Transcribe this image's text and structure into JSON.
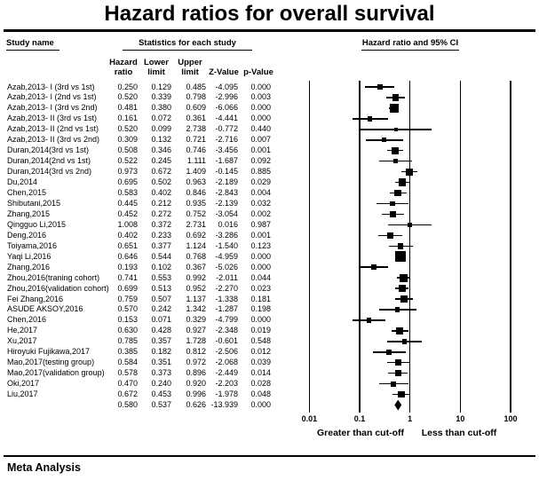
{
  "title": "Hazard ratios for overall survival",
  "footer": "Meta Analysis",
  "header": {
    "study": "Study name",
    "stats": "Statistics for each study",
    "plot": "Hazard ratio and 95% CI"
  },
  "columns": [
    "Hazard\nratio",
    "Lower\nlimit",
    "Upper\nlimit",
    "Z-Value",
    "p-Value"
  ],
  "chart_data": {
    "type": "forest",
    "title": "Hazard ratios for overall survival",
    "effect_measure": "Hazard ratio",
    "x_axis": {
      "scale": "log",
      "ticks": [
        0.01,
        0.1,
        1,
        10,
        100
      ],
      "tick_labels": [
        "0.01",
        "0.1",
        "1",
        "10",
        "100"
      ],
      "range": [
        0.01,
        100
      ]
    },
    "axis_caption_left": "Greater than cut-off",
    "axis_caption_right": "Less than cut-off",
    "studies": [
      {
        "name": "Azab,2013- I (3rd vs 1st)",
        "hazard_ratio": 0.25,
        "lower_limit": 0.129,
        "upper_limit": 0.485,
        "z_value": -4.095,
        "p_value": 0.0
      },
      {
        "name": "Azab,2013- I (2nd vs 1st)",
        "hazard_ratio": 0.52,
        "lower_limit": 0.339,
        "upper_limit": 0.798,
        "z_value": -2.996,
        "p_value": 0.003
      },
      {
        "name": "Azab,2013- I (3rd vs 2nd)",
        "hazard_ratio": 0.481,
        "lower_limit": 0.38,
        "upper_limit": 0.609,
        "z_value": -6.066,
        "p_value": 0.0
      },
      {
        "name": "Azab,2013- II (3rd vs 1st)",
        "hazard_ratio": 0.161,
        "lower_limit": 0.072,
        "upper_limit": 0.361,
        "z_value": -4.441,
        "p_value": 0.0
      },
      {
        "name": "Azab,2013- II (2nd vs 1st)",
        "hazard_ratio": 0.52,
        "lower_limit": 0.099,
        "upper_limit": 2.738,
        "z_value": -0.772,
        "p_value": 0.44
      },
      {
        "name": "Azab,2013- II (3rd vs 2nd)",
        "hazard_ratio": 0.309,
        "lower_limit": 0.132,
        "upper_limit": 0.721,
        "z_value": -2.716,
        "p_value": 0.007
      },
      {
        "name": "Duran,2014(3rd vs 1st)",
        "hazard_ratio": 0.508,
        "lower_limit": 0.346,
        "upper_limit": 0.746,
        "z_value": -3.456,
        "p_value": 0.001
      },
      {
        "name": "Duran,2014(2nd vs 1st)",
        "hazard_ratio": 0.522,
        "lower_limit": 0.245,
        "upper_limit": 1.111,
        "z_value": -1.687,
        "p_value": 0.092
      },
      {
        "name": "Duran,2014(3rd vs 2nd)",
        "hazard_ratio": 0.973,
        "lower_limit": 0.672,
        "upper_limit": 1.409,
        "z_value": -0.145,
        "p_value": 0.885
      },
      {
        "name": "Du,2014",
        "hazard_ratio": 0.695,
        "lower_limit": 0.502,
        "upper_limit": 0.963,
        "z_value": -2.189,
        "p_value": 0.029
      },
      {
        "name": "Chen,2015",
        "hazard_ratio": 0.583,
        "lower_limit": 0.402,
        "upper_limit": 0.846,
        "z_value": -2.843,
        "p_value": 0.004
      },
      {
        "name": "Shibutani,2015",
        "hazard_ratio": 0.445,
        "lower_limit": 0.212,
        "upper_limit": 0.935,
        "z_value": -2.139,
        "p_value": 0.032
      },
      {
        "name": "Zhang,2015",
        "hazard_ratio": 0.452,
        "lower_limit": 0.272,
        "upper_limit": 0.752,
        "z_value": -3.054,
        "p_value": 0.002
      },
      {
        "name": "Qingguo Li,2015",
        "hazard_ratio": 1.008,
        "lower_limit": 0.372,
        "upper_limit": 2.731,
        "z_value": 0.016,
        "p_value": 0.987
      },
      {
        "name": "Deng,2016",
        "hazard_ratio": 0.402,
        "lower_limit": 0.233,
        "upper_limit": 0.692,
        "z_value": -3.286,
        "p_value": 0.001
      },
      {
        "name": "Toiyama,2016",
        "hazard_ratio": 0.651,
        "lower_limit": 0.377,
        "upper_limit": 1.124,
        "z_value": -1.54,
        "p_value": 0.123
      },
      {
        "name": "Yaqi Li,2016",
        "hazard_ratio": 0.646,
        "lower_limit": 0.544,
        "upper_limit": 0.768,
        "z_value": -4.959,
        "p_value": 0.0
      },
      {
        "name": "Zhang,2016",
        "hazard_ratio": 0.193,
        "lower_limit": 0.102,
        "upper_limit": 0.367,
        "z_value": -5.026,
        "p_value": 0.0
      },
      {
        "name": "Zhou,2016(traning cohort)",
        "hazard_ratio": 0.741,
        "lower_limit": 0.553,
        "upper_limit": 0.992,
        "z_value": -2.011,
        "p_value": 0.044
      },
      {
        "name": "Zhou,2016(validation cohort)",
        "hazard_ratio": 0.699,
        "lower_limit": 0.513,
        "upper_limit": 0.952,
        "z_value": -2.27,
        "p_value": 0.023
      },
      {
        "name": "Fei Zhang,2016",
        "hazard_ratio": 0.759,
        "lower_limit": 0.507,
        "upper_limit": 1.137,
        "z_value": -1.338,
        "p_value": 0.181
      },
      {
        "name": "ASUDE AKSOY,2016",
        "hazard_ratio": 0.57,
        "lower_limit": 0.242,
        "upper_limit": 1.342,
        "z_value": -1.287,
        "p_value": 0.198
      },
      {
        "name": "Chen,2016",
        "hazard_ratio": 0.153,
        "lower_limit": 0.071,
        "upper_limit": 0.329,
        "z_value": -4.799,
        "p_value": 0.0
      },
      {
        "name": "He,2017",
        "hazard_ratio": 0.63,
        "lower_limit": 0.428,
        "upper_limit": 0.927,
        "z_value": -2.348,
        "p_value": 0.019
      },
      {
        "name": "Xu,2017",
        "hazard_ratio": 0.785,
        "lower_limit": 0.357,
        "upper_limit": 1.728,
        "z_value": -0.601,
        "p_value": 0.548
      },
      {
        "name": "Hiroyuki Fujikawa,2017",
        "hazard_ratio": 0.385,
        "lower_limit": 0.182,
        "upper_limit": 0.812,
        "z_value": -2.506,
        "p_value": 0.012
      },
      {
        "name": "Mao,2017(testing group)",
        "hazard_ratio": 0.584,
        "lower_limit": 0.351,
        "upper_limit": 0.972,
        "z_value": -2.068,
        "p_value": 0.039
      },
      {
        "name": "Mao,2017(validation group)",
        "hazard_ratio": 0.578,
        "lower_limit": 0.373,
        "upper_limit": 0.896,
        "z_value": -2.449,
        "p_value": 0.014
      },
      {
        "name": "Oki,2017",
        "hazard_ratio": 0.47,
        "lower_limit": 0.24,
        "upper_limit": 0.92,
        "z_value": -2.203,
        "p_value": 0.028
      },
      {
        "name": "Liu,2017",
        "hazard_ratio": 0.672,
        "lower_limit": 0.453,
        "upper_limit": 0.996,
        "z_value": -1.978,
        "p_value": 0.048
      }
    ],
    "overall": {
      "hazard_ratio": 0.58,
      "lower_limit": 0.537,
      "upper_limit": 0.626,
      "z_value": -13.939,
      "p_value": 0.0
    }
  }
}
